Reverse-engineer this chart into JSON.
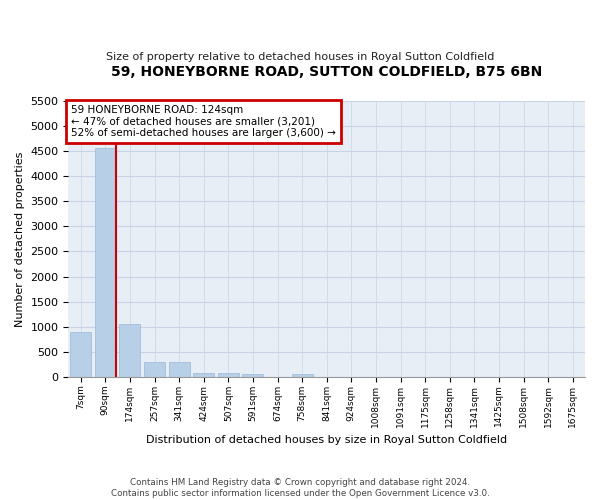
{
  "title": "59, HONEYBORNE ROAD, SUTTON COLDFIELD, B75 6BN",
  "subtitle": "Size of property relative to detached houses in Royal Sutton Coldfield",
  "xlabel": "Distribution of detached houses by size in Royal Sutton Coldfield",
  "ylabel": "Number of detached properties",
  "footer_line1": "Contains HM Land Registry data © Crown copyright and database right 2024.",
  "footer_line2": "Contains public sector information licensed under the Open Government Licence v3.0.",
  "bin_labels": [
    "7sqm",
    "90sqm",
    "174sqm",
    "257sqm",
    "341sqm",
    "424sqm",
    "507sqm",
    "591sqm",
    "674sqm",
    "758sqm",
    "841sqm",
    "924sqm",
    "1008sqm",
    "1091sqm",
    "1175sqm",
    "1258sqm",
    "1341sqm",
    "1425sqm",
    "1508sqm",
    "1592sqm",
    "1675sqm"
  ],
  "bar_values": [
    900,
    4560,
    1060,
    300,
    300,
    80,
    70,
    60,
    0,
    60,
    0,
    0,
    0,
    0,
    0,
    0,
    0,
    0,
    0,
    0,
    0
  ],
  "bar_color": "#b8cfe8",
  "bar_edge_color": "#98b8d8",
  "grid_color": "#c8d4e4",
  "bg_color": "#e8eef6",
  "vline_color": "#cc0000",
  "annotation_text": "59 HONEYBORNE ROAD: 124sqm\n← 47% of detached houses are smaller (3,201)\n52% of semi-detached houses are larger (3,600) →",
  "annotation_edge_color": "#cc0000",
  "ylim_max": 5500,
  "yticks": [
    0,
    500,
    1000,
    1500,
    2000,
    2500,
    3000,
    3500,
    4000,
    4500,
    5000,
    5500
  ]
}
